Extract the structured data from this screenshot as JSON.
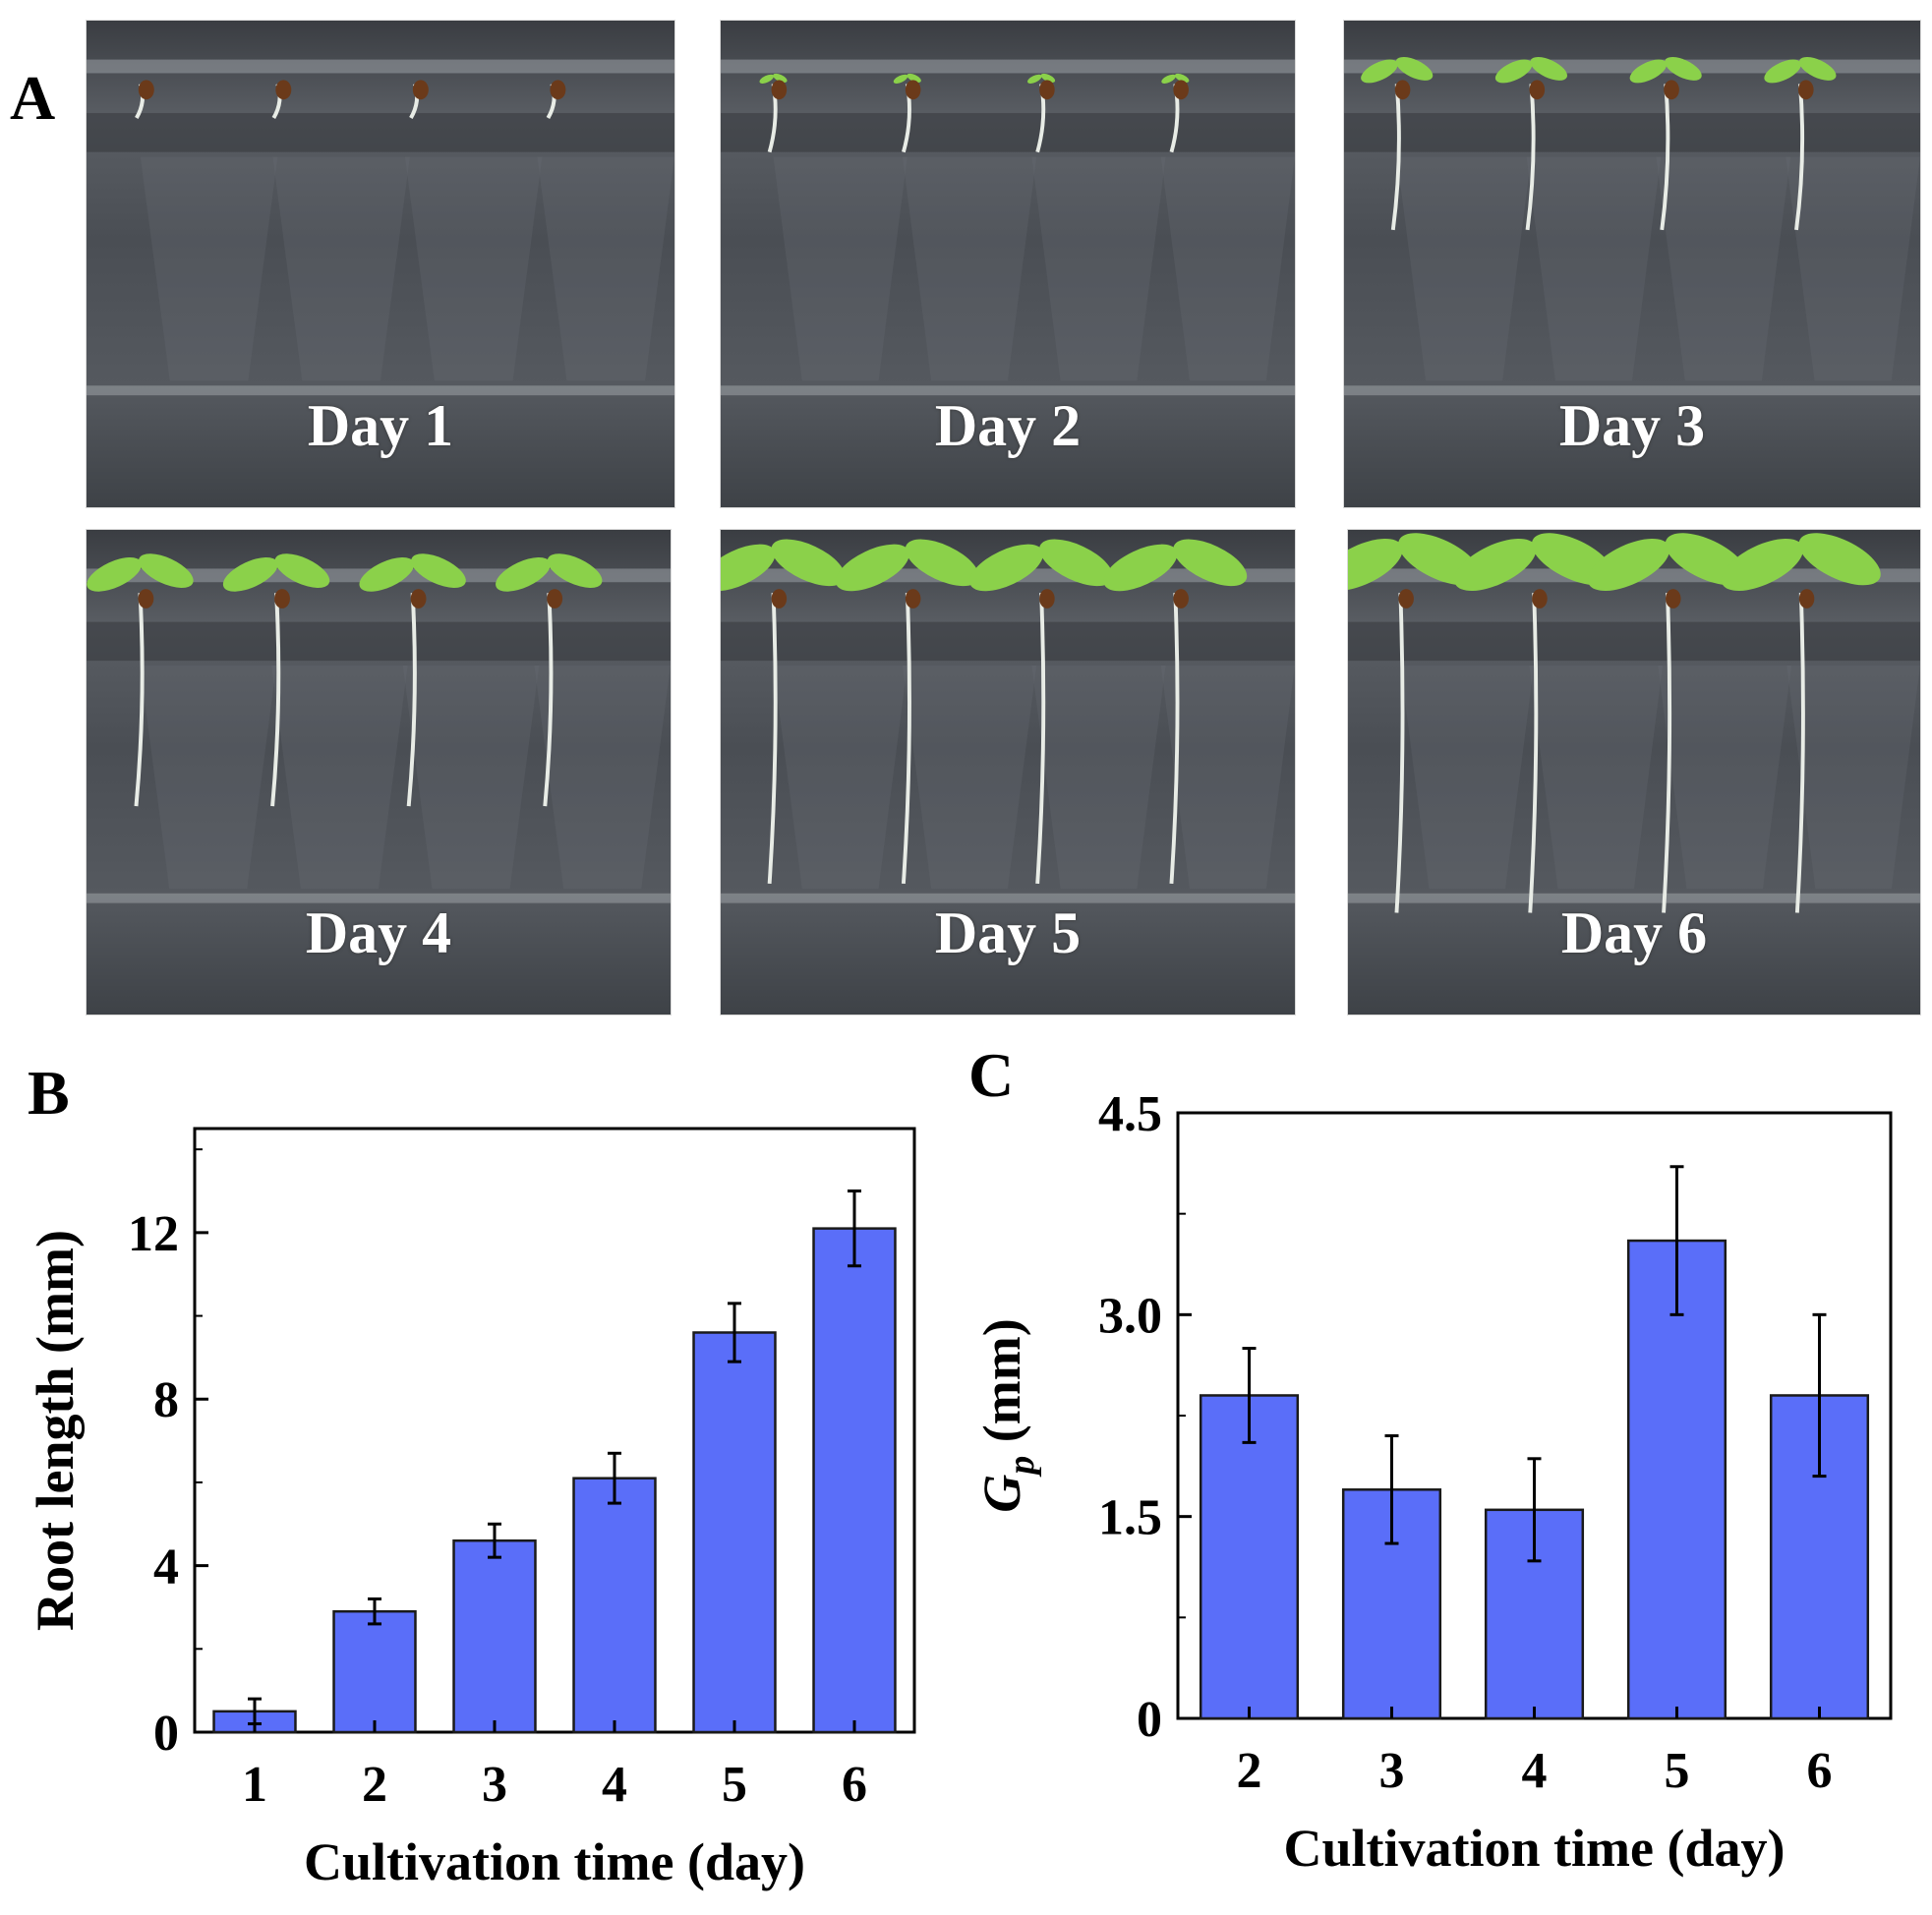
{
  "figure": {
    "panel_labels": {
      "a": "A",
      "b": "B",
      "c": "C"
    },
    "photos": [
      {
        "label": "Day 1",
        "day": 1
      },
      {
        "label": "Day 2",
        "day": 2
      },
      {
        "label": "Day 3",
        "day": 3
      },
      {
        "label": "Day 4",
        "day": 4
      },
      {
        "label": "Day 5",
        "day": 5
      },
      {
        "label": "Day 6",
        "day": 6
      }
    ],
    "colors": {
      "bar": "#5a6ef9",
      "bar_edge": "#1a1a1a",
      "leaf": "#8bd14a",
      "root": "#e8ece6",
      "seed": "#6b3a1a"
    }
  },
  "chart_data": [
    {
      "type": "bar",
      "panel": "B",
      "categories": [
        "1",
        "2",
        "3",
        "4",
        "5",
        "6"
      ],
      "values": [
        0.5,
        2.9,
        4.6,
        6.1,
        9.6,
        12.1
      ],
      "errors": [
        0.3,
        0.3,
        0.4,
        0.6,
        0.7,
        0.9
      ],
      "xlabel": "Cultivation time (day)",
      "ylabel": "Root length (mm)",
      "ylim": [
        0,
        14.5
      ],
      "yticks": [
        0,
        4,
        8,
        12
      ],
      "yticklabels": [
        "0",
        "4",
        "8",
        "12"
      ],
      "grid": false
    },
    {
      "type": "bar",
      "panel": "C",
      "categories": [
        "2",
        "3",
        "4",
        "5",
        "6"
      ],
      "values": [
        2.4,
        1.7,
        1.55,
        3.55,
        2.4
      ],
      "errors": [
        0.35,
        0.4,
        0.38,
        0.55,
        0.6
      ],
      "xlabel": "Cultivation time (day)",
      "ylabel": "G",
      "ylabel_sub": "p",
      "ylabel_unit": "(mm)",
      "ylim": [
        0,
        4.5
      ],
      "yticks": [
        0,
        1.5,
        3.0,
        4.5
      ],
      "yticklabels": [
        "0",
        "1.5",
        "3.0",
        "4.5"
      ],
      "grid": false
    }
  ]
}
